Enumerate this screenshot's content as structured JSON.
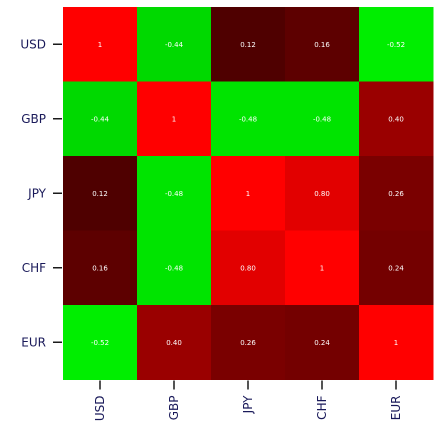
{
  "chart_data": {
    "type": "heatmap",
    "rows": [
      "USD",
      "GBP",
      "JPY",
      "CHF",
      "EUR"
    ],
    "columns": [
      "USD",
      "GBP",
      "JPY",
      "CHF",
      "EUR"
    ],
    "values": [
      [
        1,
        -0.44,
        0.12,
        0.16,
        -0.52
      ],
      [
        -0.44,
        1,
        -0.48,
        -0.48,
        0.4
      ],
      [
        0.12,
        -0.48,
        1,
        0.8,
        0.26
      ],
      [
        0.16,
        -0.48,
        0.8,
        1,
        0.24
      ],
      [
        -0.52,
        0.4,
        0.26,
        0.24,
        1
      ]
    ],
    "cell_labels": [
      [
        "1",
        "-0.44",
        "0.12",
        "0.16",
        "-0.52"
      ],
      [
        "-0.44",
        "1",
        "-0.48",
        "-0.48",
        "0.40"
      ],
      [
        "0.12",
        "-0.48",
        "1",
        "0.80",
        "0.26"
      ],
      [
        "0.16",
        "-0.48",
        "0.80",
        "1",
        "0.24"
      ],
      [
        "-0.52",
        "0.40",
        "0.26",
        "0.24",
        "1"
      ]
    ],
    "color_scale": {
      "negative": "#00ee00",
      "zero": "#000000",
      "positive": "#ff0000"
    },
    "value_range": [
      -0.52,
      1
    ],
    "title": "",
    "xlabel": "",
    "ylabel": "",
    "legend": "none",
    "grid": false
  }
}
